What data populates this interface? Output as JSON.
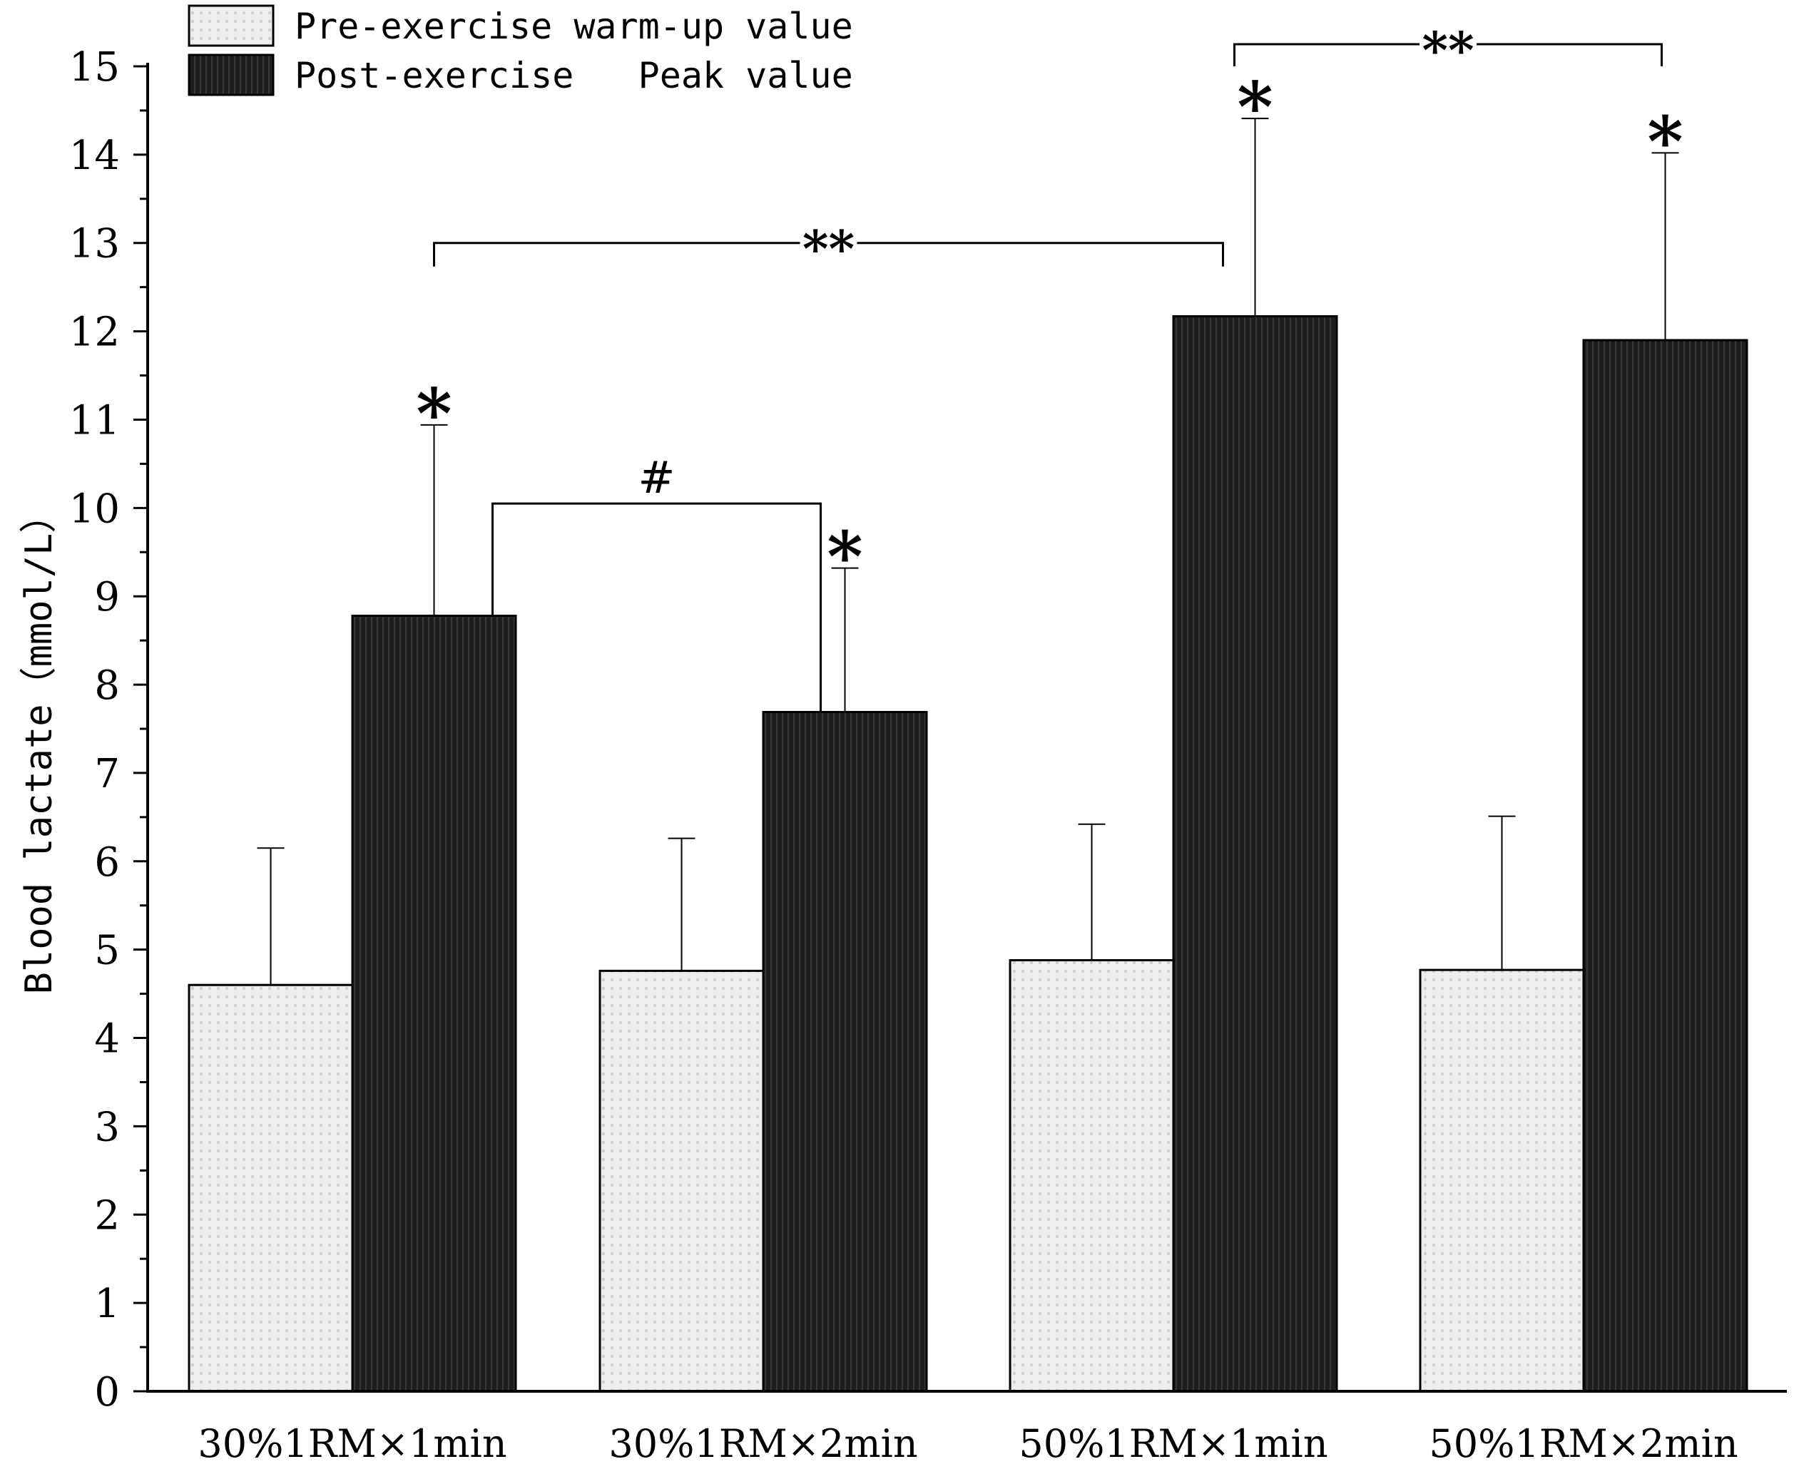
{
  "chart_data": {
    "type": "bar",
    "ylabel": "Blood lactate（mmol/L）",
    "xlabel": "",
    "ylim": [
      0,
      15
    ],
    "yticks": [
      "0",
      "1",
      "2",
      "3",
      "4",
      "5",
      "6",
      "7",
      "8",
      "9",
      "10",
      "11",
      "12",
      "13",
      "14",
      "15"
    ],
    "categories": [
      "30%1RM×1min",
      "30%1RM×2min",
      "50%1RM×1min",
      "50%1RM×2min"
    ],
    "series": [
      {
        "name": "Pre-exercise warm-up value",
        "pattern": "dotted-light",
        "values": [
          4.6,
          4.76,
          4.88,
          4.77
        ],
        "error_upper": [
          1.55,
          1.5,
          1.54,
          1.74
        ]
      },
      {
        "name": "Post-exercise   Peak value",
        "pattern": "striped-dark",
        "values": [
          8.78,
          7.69,
          12.17,
          11.9
        ],
        "error_upper": [
          2.16,
          1.63,
          2.24,
          2.12
        ]
      }
    ],
    "legend": {
      "position": "top-left",
      "entries": [
        "Pre-exercise warm-up value",
        "Post-exercise   Peak value"
      ]
    },
    "annotations": {
      "asterisks": [
        {
          "category": 0,
          "series": 1,
          "text": "*"
        },
        {
          "category": 1,
          "series": 1,
          "text": "*"
        },
        {
          "category": 2,
          "series": 1,
          "text": "*"
        },
        {
          "category": 3,
          "series": 1,
          "text": "*"
        }
      ],
      "brackets": [
        {
          "from_category": 0,
          "to_category": 2,
          "y_value": 13,
          "label": "**"
        },
        {
          "from_category": 2,
          "to_category": 3,
          "y_value": 15.25,
          "label": "**"
        },
        {
          "from_category": 0,
          "to_category": 1,
          "y_value": 10.05,
          "label": "#"
        }
      ]
    },
    "colors": {
      "pre_fill": "#eeeeee",
      "pre_dot": "#cfcfcf",
      "post_fill": "#1e1e1e",
      "post_stripe": "#3a3a3a",
      "axis": "#000000"
    }
  }
}
